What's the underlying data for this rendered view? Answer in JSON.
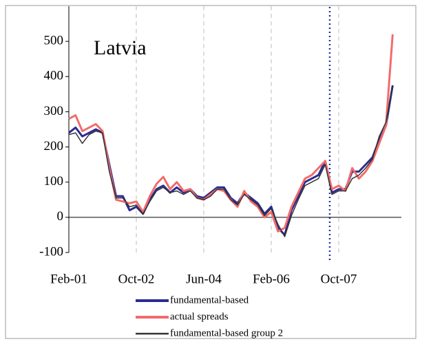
{
  "chart_data": {
    "type": "line",
    "annotation": "Latvia",
    "categories": [
      "Feb-01",
      null,
      null,
      null,
      null,
      null,
      null,
      null,
      null,
      null,
      "Oct-02",
      null,
      null,
      null,
      null,
      null,
      null,
      null,
      null,
      null,
      "Jun-04",
      null,
      null,
      null,
      null,
      null,
      null,
      null,
      null,
      null,
      "Feb-06",
      null,
      null,
      null,
      null,
      null,
      null,
      null,
      null,
      null,
      "Oct-07",
      null,
      null,
      null,
      null,
      null,
      null,
      null,
      null
    ],
    "series": [
      {
        "name": "fundamental-based",
        "color": "#2b2b8f",
        "width": 3,
        "values": [
          240,
          255,
          230,
          240,
          250,
          240,
          150,
          60,
          60,
          20,
          30,
          10,
          50,
          80,
          90,
          70,
          85,
          70,
          80,
          60,
          55,
          70,
          85,
          85,
          55,
          40,
          70,
          55,
          40,
          10,
          30,
          -30,
          -50,
          20,
          60,
          100,
          110,
          120,
          160,
          70,
          80,
          80,
          130,
          130,
          150,
          170,
          220,
          260,
          375
        ]
      },
      {
        "name": "actual spreads",
        "color": "#f26b6b",
        "width": 3,
        "values": [
          280,
          290,
          245,
          255,
          265,
          245,
          140,
          50,
          45,
          40,
          45,
          15,
          60,
          95,
          115,
          80,
          100,
          75,
          80,
          55,
          50,
          65,
          80,
          75,
          50,
          30,
          75,
          45,
          30,
          0,
          15,
          -40,
          -30,
          30,
          70,
          110,
          120,
          140,
          160,
          80,
          90,
          75,
          140,
          110,
          130,
          160,
          210,
          260,
          520
        ]
      },
      {
        "name": "fundamental-based group 2",
        "color": "#333333",
        "width": 1.5,
        "values": [
          235,
          240,
          210,
          235,
          245,
          240,
          130,
          55,
          55,
          30,
          35,
          10,
          45,
          75,
          85,
          70,
          75,
          65,
          75,
          55,
          50,
          60,
          80,
          80,
          50,
          35,
          65,
          50,
          35,
          5,
          25,
          -20,
          -55,
          5,
          50,
          90,
          100,
          110,
          150,
          65,
          75,
          75,
          110,
          120,
          140,
          165,
          230,
          270,
          375
        ]
      }
    ],
    "ylim": [
      -100,
      600
    ],
    "yticks": [
      -100,
      0,
      100,
      200,
      300,
      400,
      500
    ]
  }
}
